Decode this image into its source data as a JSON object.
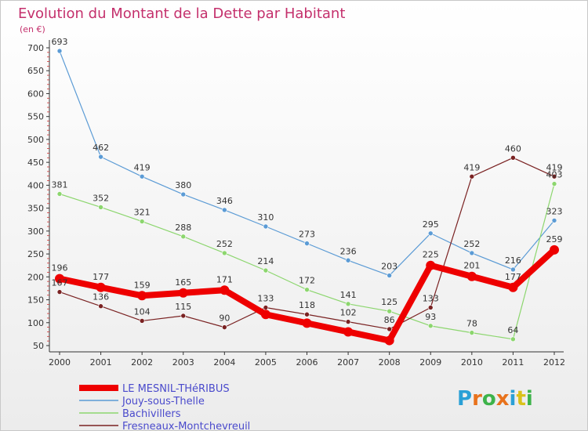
{
  "chart_data": {
    "type": "line",
    "title": "Evolution du Montant de la Dette par Habitant",
    "unit_label": "(en €)",
    "x": [
      "2000",
      "2001",
      "2002",
      "2003",
      "2004",
      "2005",
      "2006",
      "2007",
      "2008",
      "2009",
      "2010",
      "2011",
      "2012"
    ],
    "ylim": [
      50,
      700
    ],
    "yticks": [
      50,
      100,
      150,
      200,
      250,
      300,
      350,
      400,
      450,
      500,
      550,
      600,
      650,
      700
    ],
    "grid": false,
    "legend_position": "bottom-left",
    "series": [
      {
        "name": "LE MESNIL-THéRIBUS",
        "color": "#ee0000",
        "width": 8,
        "values": [
          196,
          177,
          159,
          165,
          171,
          118,
          99,
          80,
          61,
          225,
          201,
          177,
          259
        ],
        "labels": [
          "196",
          "177",
          "159",
          "165",
          "171",
          "",
          "",
          "",
          "",
          "225",
          "201",
          "177",
          "259"
        ]
      },
      {
        "name": "Jouy-sous-Thelle",
        "color": "#5b9bd5",
        "width": 1.2,
        "values": [
          693,
          462,
          419,
          380,
          346,
          310,
          273,
          236,
          203,
          295,
          252,
          216,
          323
        ],
        "labels": [
          "693",
          "462",
          "419",
          "380",
          "346",
          "310",
          "273",
          "236",
          "203",
          "295",
          "252",
          "216",
          "323"
        ]
      },
      {
        "name": "Bachivillers",
        "color": "#8cd66e",
        "width": 1.2,
        "values": [
          381,
          352,
          321,
          288,
          252,
          214,
          172,
          141,
          125,
          93,
          78,
          64,
          403
        ],
        "labels": [
          "381",
          "352",
          "321",
          "288",
          "252",
          "214",
          "172",
          "141",
          "125",
          "93",
          "78",
          "64",
          "403"
        ]
      },
      {
        "name": "Fresneaux-Montchevreuil",
        "color": "#7a2222",
        "width": 1.2,
        "values": [
          167,
          136,
          104,
          115,
          90,
          133,
          118,
          102,
          86,
          133,
          419,
          460,
          419
        ],
        "labels": [
          "167",
          "136",
          "104",
          "115",
          "90",
          "133",
          "118",
          "102",
          "86",
          "133",
          "419",
          "460",
          "419"
        ]
      }
    ]
  },
  "logo": {
    "text": "Proxiti",
    "letter_colors": [
      "#2aa0d6",
      "#e8721c",
      "#3db34a",
      "#e8721c",
      "#2aa0d6",
      "#d9c21a",
      "#3db34a"
    ]
  }
}
